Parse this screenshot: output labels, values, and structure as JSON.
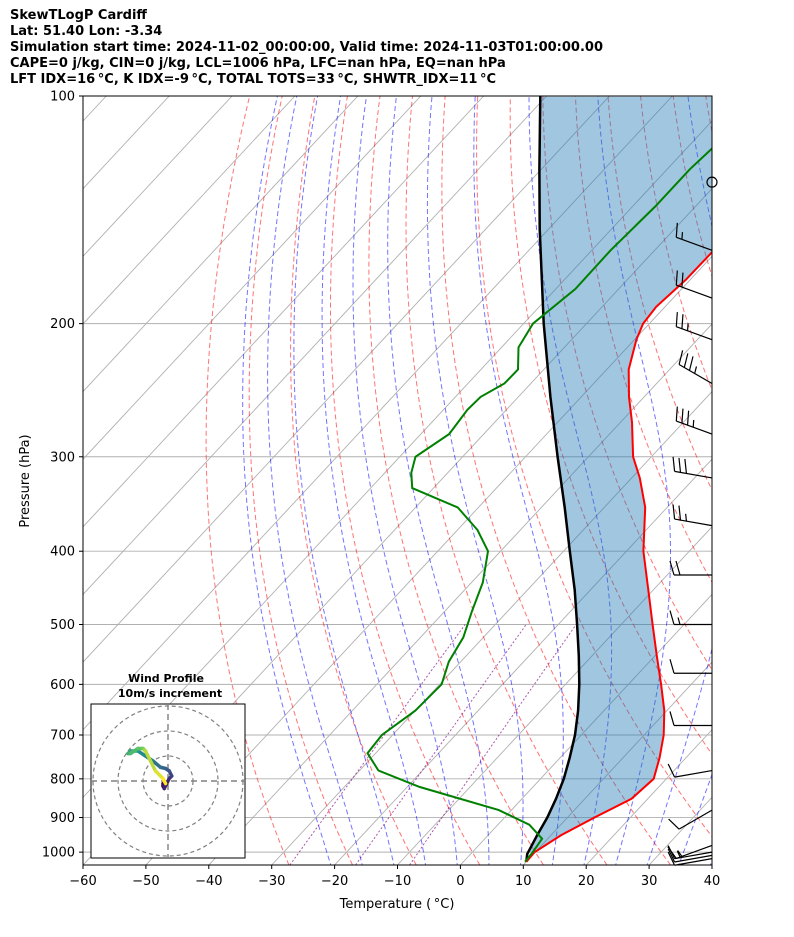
{
  "header": {
    "lines": [
      "SkewTLogP Cardiff",
      "Lat: 51.40   Lon: -3.34",
      "Simulation start time: 2024-11-02_00:00:00, Valid time: 2024-11-03T01:00:00.00",
      "CAPE=0 j/kg, CIN=0 j/kg, LCL=1006 hPa, LFC=nan hPa, EQ=nan hPa",
      "LFT IDX=16 °C, K IDX=-9 °C, TOTAL TOTS=33 °C, SHWTR_IDX=11 °C"
    ]
  },
  "chart_data": {
    "type": "line",
    "title": "SkewTLogP Cardiff",
    "xlabel": "Temperature ( °C)",
    "ylabel": "Pressure (hPa)",
    "xlim": [
      -60,
      40
    ],
    "ylim": [
      1040,
      100
    ],
    "y_scale": "log",
    "grid": true,
    "x_ticks": [
      -60,
      -50,
      -40,
      -30,
      -20,
      -10,
      0,
      10,
      20,
      30,
      40
    ],
    "x_tick_labels": [
      "−60",
      "−50",
      "−40",
      "−30",
      "−20",
      "−10",
      "0",
      "10",
      "20",
      "30",
      "40"
    ],
    "y_ticks": [
      100,
      200,
      300,
      400,
      500,
      600,
      700,
      800,
      900,
      1000
    ],
    "y_tick_labels": [
      "100",
      "200",
      "300",
      "400",
      "500",
      "600",
      "700",
      "800",
      "900",
      "1000"
    ],
    "colors": {
      "temperature": "#ff0000",
      "dewpoint": "#008000",
      "parcel": "#000000",
      "cape_fill": "#1f77b4",
      "dry_adiabat": "#ff0000",
      "moist_adiabat": "#0000ff",
      "mixing_ratio": "#800080",
      "grid": "#b0b0b0"
    },
    "series": [
      {
        "key": "temperature",
        "p": [
          1030,
          1000,
          950,
          900,
          850,
          800,
          750,
          700,
          650,
          600,
          550,
          500,
          450,
          400,
          350,
          320,
          300,
          270,
          250,
          230,
          210,
          200,
          190,
          175,
          160,
          140,
          130,
          120,
          110,
          100
        ],
        "t": [
          10.0,
          9.9,
          11.6,
          14.3,
          17.4,
          18.0,
          15.8,
          13.1,
          9.6,
          5.2,
          0.3,
          -5.0,
          -10.8,
          -17.3,
          -23.5,
          -28.7,
          -32.9,
          -38.2,
          -42.4,
          -46.5,
          -49.7,
          -51.0,
          -51.4,
          -50.7,
          -50.6,
          -51.5,
          -50.8,
          -49.3,
          -49.1,
          -46.7
        ]
      },
      {
        "key": "dewpoint",
        "p": [
          1030,
          1000,
          960,
          920,
          880,
          820,
          780,
          740,
          700,
          650,
          600,
          560,
          520,
          480,
          440,
          400,
          375,
          350,
          330,
          315,
          300,
          280,
          260,
          250,
          240,
          230,
          215,
          200,
          180,
          160,
          140,
          125,
          115,
          105,
          100
        ],
        "t": [
          9.8,
          9.6,
          9.1,
          5.0,
          -2.0,
          -18.0,
          -27.0,
          -31.3,
          -31.7,
          -30.0,
          -29.7,
          -31.9,
          -33.2,
          -35.7,
          -38.2,
          -42.0,
          -46.8,
          -53.3,
          -63.4,
          -65.8,
          -67.5,
          -65.5,
          -66.2,
          -66.0,
          -64.2,
          -64.1,
          -67.3,
          -68.5,
          -66.9,
          -67.0,
          -66.4,
          -66.4,
          -65.8,
          -64.8,
          -63.6
        ]
      },
      {
        "key": "parcel",
        "p": [
          1030,
          1006,
          950,
          900,
          850,
          800,
          750,
          700,
          650,
          600,
          550,
          500,
          450,
          400,
          350,
          300,
          250,
          200,
          150,
          125,
          100
        ],
        "t": [
          10.0,
          9.0,
          7.8,
          6.8,
          5.4,
          3.7,
          1.5,
          -1.0,
          -4.1,
          -7.8,
          -12.1,
          -17.0,
          -22.5,
          -29.0,
          -36.3,
          -44.9,
          -54.9,
          -66.8,
          -81.4,
          -90.3,
          -101.0
        ]
      }
    ],
    "wind_barbs": {
      "p": [
        130,
        160,
        185,
        210,
        240,
        280,
        320,
        370,
        430,
        500,
        580,
        680,
        780,
        880,
        980,
        1000,
        1010,
        1020
      ],
      "speed": [
        0,
        15,
        20,
        25,
        35,
        35,
        30,
        25,
        20,
        15,
        10,
        10,
        10,
        10,
        15,
        15,
        10,
        10
      ],
      "dir": [
        0,
        290,
        290,
        290,
        300,
        290,
        280,
        280,
        270,
        270,
        270,
        270,
        260,
        240,
        250,
        260,
        260,
        260
      ]
    },
    "hodograph": {
      "title": "Wind Profile",
      "subtitle": "10m/s increment",
      "u": [
        -2.0,
        -2.0,
        -1.5,
        0.5,
        1.5,
        0.5,
        -1.0,
        -3.0,
        -6.0,
        -9.0,
        -12.0,
        -15.0,
        -16.0,
        -15.0,
        -12.0,
        -10.0,
        -9.5,
        -9.0,
        -5.0,
        -2.0,
        -1.0
      ],
      "v": [
        -1.0,
        -2.0,
        -3.0,
        1.0,
        2.0,
        4.0,
        5.0,
        5.5,
        8.0,
        10.0,
        12.0,
        12.0,
        11.0,
        11.0,
        13.0,
        13.0,
        12.5,
        12.0,
        4.0,
        1.0,
        -1.0
      ]
    }
  }
}
